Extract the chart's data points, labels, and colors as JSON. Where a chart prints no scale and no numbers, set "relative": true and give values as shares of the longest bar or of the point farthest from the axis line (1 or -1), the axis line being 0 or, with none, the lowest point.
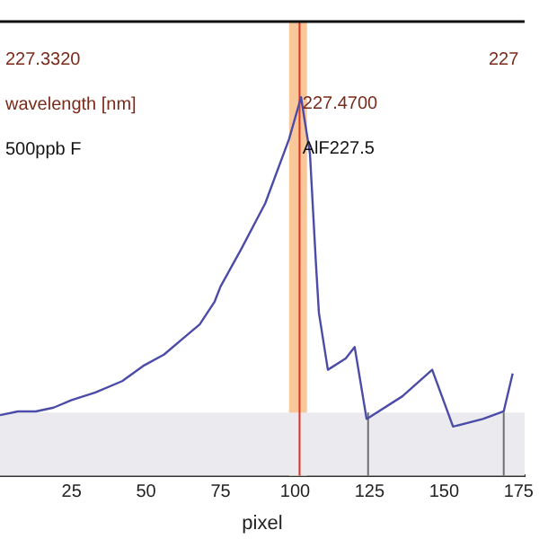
{
  "chart_data": {
    "type": "line",
    "relative": true,
    "xlabel": "pixel",
    "x": [
      1,
      7,
      13,
      19,
      25,
      33,
      42,
      49,
      56,
      62,
      68,
      73,
      75,
      82,
      90,
      98,
      102,
      105,
      107,
      108,
      111,
      117,
      120,
      124,
      136,
      146,
      153,
      163,
      170,
      173
    ],
    "series": [
      {
        "color": "#4b4ba8",
        "values": [
          0.16,
          0.17,
          0.17,
          0.18,
          0.2,
          0.22,
          0.25,
          0.29,
          0.32,
          0.36,
          0.4,
          0.46,
          0.5,
          0.6,
          0.72,
          0.89,
          1,
          0.85,
          0.56,
          0.43,
          0.28,
          0.31,
          0.34,
          0.15,
          0.21,
          0.28,
          0.13,
          0.15,
          0.17,
          0.27
        ]
      }
    ],
    "xlim": [
      1,
      177
    ],
    "xticks": [
      25,
      50,
      75,
      100,
      125,
      150,
      175
    ],
    "bands": [
      {
        "axis": "x",
        "from": 98,
        "to": 104,
        "color": "#f9c89a"
      },
      {
        "axis": "y",
        "from": 0,
        "to": 0.167,
        "color": "#ebebef"
      }
    ],
    "ref_lines": [
      {
        "axis": "x",
        "value": 101.5,
        "color": "#e03020"
      },
      {
        "axis": "x",
        "value": 124.5,
        "color": "#707070"
      },
      {
        "axis": "x",
        "value": 170,
        "color": "#707070"
      }
    ],
    "annotations": [
      "227.3320",
      {
        "text": "227.4700",
        "x": 102.5,
        "y": 0.97
      },
      "227",
      "wavelength [nm]",
      "500ppb F",
      {
        "text": "AlF227.5",
        "x": 102.5,
        "y": 0.85
      }
    ],
    "grid": false,
    "legend": false,
    "marker": "none",
    "line_style": "solid"
  }
}
